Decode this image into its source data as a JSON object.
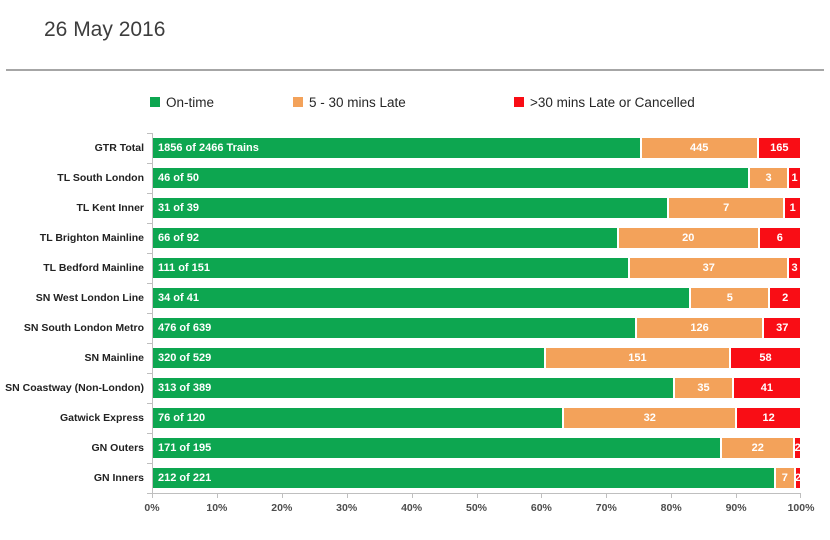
{
  "header": {
    "title": "26 May 2016"
  },
  "legend": [
    {
      "label": "On-time",
      "color": "#0da650"
    },
    {
      "label": "5 - 30 mins Late",
      "color": "#f3a25a"
    },
    {
      "label": ">30 mins Late or Cancelled",
      "color": "#f90d15"
    }
  ],
  "chart_data": {
    "type": "bar",
    "orientation": "horizontal",
    "stacked": true,
    "normalized_to_percent": true,
    "title": "26 May 2016",
    "xlabel": "",
    "ylabel": "",
    "xlim_percent": [
      0,
      100
    ],
    "grid": false,
    "legend_position": "top",
    "x_tick_labels": [
      "0%",
      "10%",
      "20%",
      "30%",
      "40%",
      "50%",
      "60%",
      "70%",
      "80%",
      "90%",
      "100%"
    ],
    "categories": [
      "GTR Total",
      "TL South London",
      "TL Kent Inner",
      "TL Brighton Mainline",
      "TL Bedford Mainline",
      "SN West London Line",
      "SN South London Metro",
      "SN Mainline",
      "SN Coastway (Non-London)",
      "Gatwick Express",
      "GN Outers",
      "GN Inners"
    ],
    "series": [
      {
        "name": "On-time",
        "color": "#0da650",
        "values": [
          1856,
          46,
          31,
          66,
          111,
          34,
          476,
          320,
          313,
          76,
          171,
          212
        ]
      },
      {
        "name": "5 - 30 mins Late",
        "color": "#f3a25a",
        "values": [
          445,
          3,
          7,
          20,
          37,
          5,
          126,
          151,
          35,
          32,
          22,
          7
        ]
      },
      {
        "name": ">30 mins Late or Cancelled",
        "color": "#f90d15",
        "values": [
          165,
          1,
          1,
          6,
          3,
          2,
          37,
          58,
          41,
          12,
          2,
          2
        ]
      }
    ],
    "totals": [
      2466,
      50,
      39,
      92,
      151,
      41,
      639,
      529,
      389,
      120,
      195,
      221
    ],
    "ontime_labels": [
      "1856 of 2466 Trains",
      "46 of 50",
      "31 of 39",
      "66 of 92",
      "111 of 151",
      "34 of 41",
      "476 of 639",
      "320 of 529",
      "313 of 389",
      "76 of 120",
      "171 of 195",
      "212 of 221"
    ]
  }
}
